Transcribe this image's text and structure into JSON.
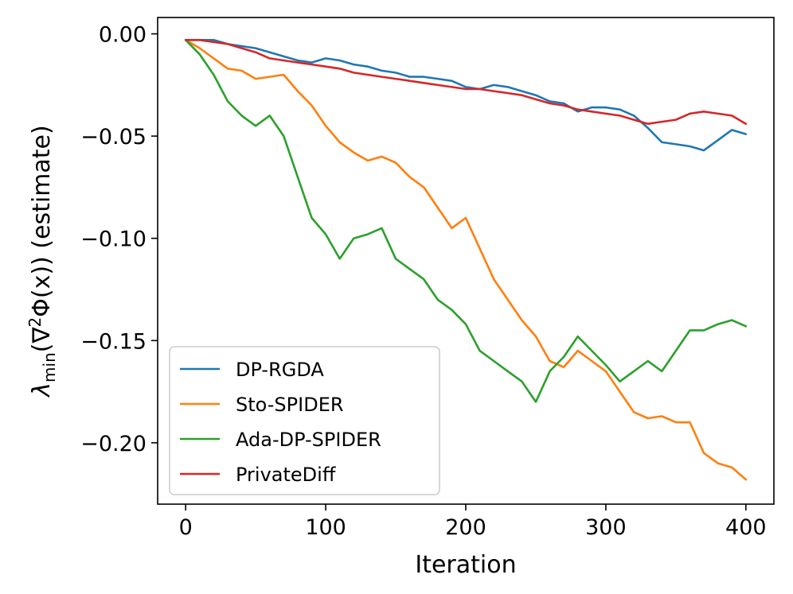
{
  "chart_data": {
    "type": "line",
    "title": "",
    "xlabel": "Iteration",
    "ylabel": {
      "symbol": "λ",
      "subscript": "min",
      "body": "(∇",
      "sup": "2",
      "tail": "Φ(x)) (estimate)"
    },
    "xlim": [
      -20,
      420
    ],
    "ylim": [
      -0.23,
      0.008
    ],
    "x_ticks": [
      0,
      100,
      200,
      300,
      400
    ],
    "x_tick_labels": [
      "0",
      "100",
      "200",
      "300",
      "400"
    ],
    "y_ticks": [
      0.0,
      -0.05,
      -0.1,
      -0.15,
      -0.2
    ],
    "y_tick_labels": [
      "0.00",
      "−0.05",
      "−0.10",
      "−0.15",
      "−0.20"
    ],
    "legend_position": "lower-left",
    "series": [
      {
        "name": "DP-RGDA",
        "color": "#1f77b4",
        "x": [
          0,
          10,
          20,
          30,
          40,
          50,
          60,
          70,
          80,
          90,
          100,
          110,
          120,
          130,
          140,
          150,
          160,
          170,
          180,
          190,
          200,
          210,
          220,
          230,
          240,
          250,
          260,
          270,
          280,
          290,
          300,
          310,
          320,
          330,
          340,
          350,
          360,
          370,
          380,
          390,
          400
        ],
        "y": [
          -0.003,
          -0.003,
          -0.003,
          -0.005,
          -0.006,
          -0.007,
          -0.009,
          -0.011,
          -0.013,
          -0.014,
          -0.012,
          -0.013,
          -0.015,
          -0.016,
          -0.018,
          -0.019,
          -0.021,
          -0.021,
          -0.022,
          -0.023,
          -0.026,
          -0.027,
          -0.025,
          -0.026,
          -0.028,
          -0.03,
          -0.033,
          -0.034,
          -0.038,
          -0.036,
          -0.036,
          -0.037,
          -0.04,
          -0.046,
          -0.053,
          -0.054,
          -0.055,
          -0.057,
          -0.052,
          -0.047,
          -0.049
        ]
      },
      {
        "name": "Sto-SPIDER",
        "color": "#ff7f0e",
        "x": [
          0,
          10,
          20,
          30,
          40,
          50,
          60,
          70,
          80,
          90,
          100,
          110,
          120,
          130,
          140,
          150,
          160,
          170,
          180,
          190,
          200,
          210,
          220,
          230,
          240,
          250,
          260,
          270,
          280,
          290,
          300,
          310,
          320,
          330,
          340,
          350,
          360,
          370,
          380,
          390,
          400
        ],
        "y": [
          -0.003,
          -0.007,
          -0.012,
          -0.017,
          -0.018,
          -0.022,
          -0.021,
          -0.02,
          -0.028,
          -0.035,
          -0.045,
          -0.053,
          -0.058,
          -0.062,
          -0.06,
          -0.063,
          -0.07,
          -0.075,
          -0.085,
          -0.095,
          -0.09,
          -0.105,
          -0.12,
          -0.13,
          -0.14,
          -0.148,
          -0.16,
          -0.163,
          -0.155,
          -0.16,
          -0.165,
          -0.175,
          -0.185,
          -0.188,
          -0.187,
          -0.19,
          -0.19,
          -0.205,
          -0.21,
          -0.212,
          -0.218
        ]
      },
      {
        "name": "Ada-DP-SPIDER",
        "color": "#2ca02c",
        "x": [
          0,
          10,
          20,
          30,
          40,
          50,
          60,
          70,
          80,
          90,
          100,
          110,
          120,
          130,
          140,
          150,
          160,
          170,
          180,
          190,
          200,
          210,
          220,
          230,
          240,
          250,
          260,
          270,
          280,
          290,
          300,
          310,
          320,
          330,
          340,
          350,
          360,
          370,
          380,
          390,
          400
        ],
        "y": [
          -0.003,
          -0.01,
          -0.02,
          -0.033,
          -0.04,
          -0.045,
          -0.04,
          -0.05,
          -0.07,
          -0.09,
          -0.098,
          -0.11,
          -0.1,
          -0.098,
          -0.095,
          -0.11,
          -0.115,
          -0.12,
          -0.13,
          -0.135,
          -0.142,
          -0.155,
          -0.16,
          -0.165,
          -0.17,
          -0.18,
          -0.165,
          -0.158,
          -0.148,
          -0.155,
          -0.162,
          -0.17,
          -0.165,
          -0.16,
          -0.165,
          -0.155,
          -0.145,
          -0.145,
          -0.142,
          -0.14,
          -0.143
        ]
      },
      {
        "name": "PrivateDiff",
        "color": "#d62728",
        "x": [
          0,
          10,
          20,
          30,
          40,
          50,
          60,
          70,
          80,
          90,
          100,
          110,
          120,
          130,
          140,
          150,
          160,
          170,
          180,
          190,
          200,
          210,
          220,
          230,
          240,
          250,
          260,
          270,
          280,
          290,
          300,
          310,
          320,
          330,
          340,
          350,
          360,
          370,
          380,
          390,
          400
        ],
        "y": [
          -0.003,
          -0.003,
          -0.004,
          -0.005,
          -0.007,
          -0.009,
          -0.012,
          -0.013,
          -0.014,
          -0.015,
          -0.016,
          -0.017,
          -0.019,
          -0.02,
          -0.021,
          -0.022,
          -0.023,
          -0.024,
          -0.025,
          -0.026,
          -0.027,
          -0.027,
          -0.028,
          -0.029,
          -0.03,
          -0.032,
          -0.034,
          -0.035,
          -0.037,
          -0.038,
          -0.039,
          -0.04,
          -0.042,
          -0.044,
          -0.043,
          -0.042,
          -0.039,
          -0.038,
          -0.039,
          -0.04,
          -0.044
        ]
      }
    ]
  }
}
